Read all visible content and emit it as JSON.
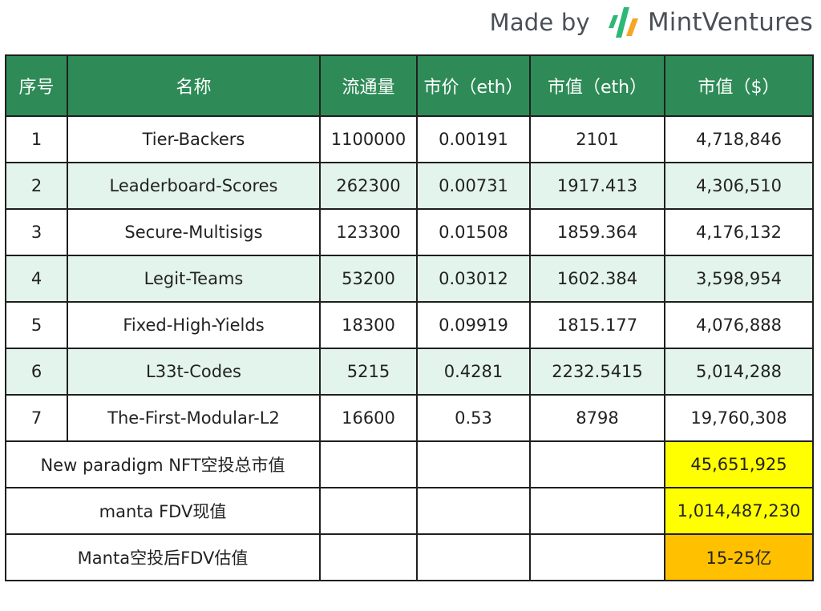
{
  "brand": {
    "made_by": "Made by",
    "name": "MintVentures",
    "colors": {
      "green": "#2eb876",
      "orange": "#f5a623",
      "text": "#4a4f57"
    }
  },
  "table": {
    "header_color": "#2e8b57",
    "stripe_color": "#e3f4ec",
    "headers": [
      "序号",
      "名称",
      "流通量",
      "市价（eth）",
      "市值（eth）",
      "市值（$）"
    ],
    "rows": [
      [
        "1",
        "Tier-Backers",
        "1100000",
        "0.00191",
        "2101",
        "4,718,846"
      ],
      [
        "2",
        "Leaderboard-Scores",
        "262300",
        "0.00731",
        "1917.413",
        "4,306,510"
      ],
      [
        "3",
        "Secure-Multisigs",
        "123300",
        "0.01508",
        "1859.364",
        "4,176,132"
      ],
      [
        "4",
        "Legit-Teams",
        "53200",
        "0.03012",
        "1602.384",
        "3,598,954"
      ],
      [
        "5",
        "Fixed-High-Yields",
        "18300",
        "0.09919",
        "1815.177",
        "4,076,888"
      ],
      [
        "6",
        "L33t-Codes",
        "5215",
        "0.4281",
        "2232.5415",
        "5,014,288"
      ],
      [
        "7",
        "The-First-Modular-L2",
        "16600",
        "0.53",
        "8798",
        "19,760,308"
      ]
    ],
    "summary": [
      {
        "label": "New paradigm NFT空投总市值",
        "value": "45,651,925",
        "highlight": "#ffff00"
      },
      {
        "label": "manta FDV现值",
        "value": "1,014,487,230",
        "highlight": "#ffff00"
      },
      {
        "label": "Manta空投后FDV估值",
        "value": "15-25亿",
        "highlight": "#ffc000"
      }
    ]
  }
}
